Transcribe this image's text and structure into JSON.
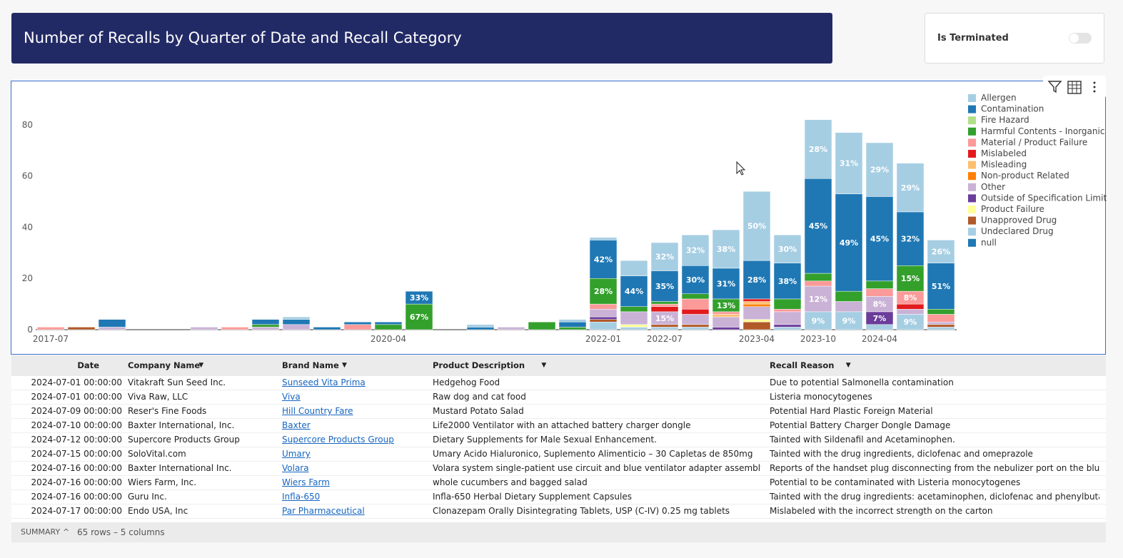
{
  "header": {
    "title": "Number of Recalls by Quarter of Date and Recall Category"
  },
  "filter": {
    "label": "Is Terminated"
  },
  "chart_data": {
    "type": "bar",
    "stacked": true,
    "categories": [
      "2017-07",
      null,
      null,
      null,
      null,
      null,
      null,
      null,
      null,
      null,
      null,
      "2020-04",
      null,
      null,
      null,
      null,
      null,
      null,
      "2022-01",
      null,
      "2022-07",
      null,
      null,
      "2023-04",
      null,
      "2023-10",
      null,
      "2024-04",
      null,
      null
    ],
    "ylim": [
      0,
      90
    ],
    "yticks": [
      0,
      20,
      40,
      60,
      80
    ],
    "grid": false,
    "legend": "right",
    "series": [
      {
        "name": "Allergen",
        "color": "#a6cee3",
        "values": [
          0,
          0,
          0,
          0,
          0,
          0,
          0,
          0,
          1,
          0,
          0,
          0,
          0,
          0,
          1,
          0,
          0,
          1,
          1,
          6,
          11,
          12,
          15,
          27,
          11,
          23,
          24,
          21,
          19,
          9
        ],
        "value_labels": [
          null,
          null,
          null,
          null,
          null,
          null,
          null,
          null,
          null,
          null,
          null,
          null,
          null,
          null,
          null,
          null,
          null,
          null,
          null,
          null,
          "32%",
          "32%",
          "38%",
          "50%",
          "30%",
          "28%",
          "31%",
          "29%",
          "29%",
          "26%"
        ]
      },
      {
        "name": "Contamination",
        "color": "#1f78b4",
        "values": [
          0,
          0,
          0,
          0,
          0,
          0,
          0,
          0,
          0,
          0,
          0,
          0,
          0,
          0,
          0,
          0,
          0,
          0,
          0,
          0,
          0,
          0,
          0,
          0,
          0,
          0,
          0,
          0,
          0,
          0
        ]
      },
      {
        "name": "Fire Hazard",
        "color": "#b2df8a",
        "values": [
          0,
          0,
          0,
          0,
          0,
          0,
          0,
          0,
          0,
          0,
          0,
          0,
          0,
          0,
          0,
          0,
          0,
          0,
          0,
          0,
          0,
          0,
          0,
          0,
          0,
          0,
          0,
          0,
          0,
          0
        ]
      },
      {
        "name": "Harmful Contents - Inorganic",
        "color": "#33a02c",
        "values": [
          0,
          0,
          0,
          0,
          0,
          0,
          0,
          1,
          0,
          0,
          0,
          2,
          10,
          0,
          0,
          0,
          3,
          1,
          10,
          2,
          1,
          2,
          5,
          0,
          4,
          3,
          4,
          3,
          10,
          2
        ],
        "value_labels": [
          null,
          null,
          null,
          null,
          null,
          null,
          null,
          null,
          null,
          null,
          null,
          null,
          "67%",
          null,
          null,
          null,
          null,
          null,
          "28%",
          null,
          null,
          null,
          "13%",
          null,
          null,
          null,
          null,
          null,
          "15%",
          null
        ]
      },
      {
        "name": "Material / Product Failure",
        "color": "#fb9a99",
        "values": [
          1,
          0,
          0,
          0,
          0,
          0,
          1,
          0,
          0,
          0,
          2,
          0,
          0,
          0,
          0,
          0,
          0,
          0,
          2,
          0,
          1,
          4,
          1,
          0,
          1,
          2,
          0,
          3,
          5,
          3
        ],
        "value_labels": [
          null,
          null,
          null,
          null,
          null,
          null,
          null,
          null,
          null,
          null,
          null,
          null,
          null,
          null,
          null,
          null,
          null,
          null,
          null,
          null,
          null,
          null,
          null,
          null,
          null,
          null,
          null,
          null,
          "8%",
          null
        ]
      },
      {
        "name": "Mislabeled",
        "color": "#e31a1c",
        "values": [
          0,
          0,
          0,
          0,
          0,
          0,
          0,
          0,
          0,
          0,
          0,
          0,
          0,
          0,
          0,
          0,
          0,
          0,
          0,
          0,
          2,
          2,
          0,
          1,
          0,
          0,
          0,
          0,
          2,
          0
        ]
      },
      {
        "name": "Misleading",
        "color": "#fdbf6f",
        "values": [
          0,
          0,
          0,
          0,
          0,
          0,
          0,
          0,
          0,
          0,
          0,
          0,
          0,
          0,
          0,
          0,
          0,
          0,
          0,
          0,
          0,
          0,
          1,
          1,
          0,
          0,
          0,
          0,
          0,
          0
        ]
      },
      {
        "name": "Non-product Related",
        "color": "#ff7f00",
        "values": [
          0,
          0,
          0,
          0,
          0,
          0,
          0,
          0,
          0,
          0,
          0,
          0,
          0,
          0,
          0,
          0,
          0,
          0,
          0,
          0,
          0,
          0,
          0,
          1,
          0,
          0,
          0,
          0,
          0,
          0
        ]
      },
      {
        "name": "Other",
        "color": "#cab2d6",
        "values": [
          0,
          0,
          1,
          0,
          0,
          1,
          0,
          1,
          2,
          0,
          0,
          0,
          0,
          0,
          0,
          1,
          0,
          0,
          3,
          5,
          5,
          4,
          4,
          5,
          5,
          10,
          4,
          6,
          2,
          1
        ],
        "value_labels": [
          null,
          null,
          null,
          null,
          null,
          null,
          null,
          null,
          null,
          null,
          null,
          null,
          null,
          null,
          null,
          null,
          null,
          null,
          null,
          null,
          "15%",
          null,
          null,
          null,
          null,
          "12%",
          null,
          "8%",
          null,
          null
        ]
      },
      {
        "name": "Outside of Specification Limit",
        "color": "#6a3d9a",
        "values": [
          0,
          0,
          0,
          0,
          0,
          0,
          0,
          0,
          0,
          0,
          0,
          0,
          0,
          0,
          0,
          0,
          0,
          0,
          1,
          0,
          0,
          0,
          1,
          0,
          1,
          0,
          0,
          5,
          0,
          0
        ],
        "value_labels": [
          null,
          null,
          null,
          null,
          null,
          null,
          null,
          null,
          null,
          null,
          null,
          null,
          null,
          null,
          null,
          null,
          null,
          null,
          null,
          null,
          null,
          null,
          null,
          null,
          null,
          null,
          null,
          "7%",
          null,
          null
        ]
      },
      {
        "name": "Product Failure",
        "color": "#ffff99",
        "values": [
          0,
          0,
          0,
          0,
          0,
          0,
          0,
          0,
          0,
          0,
          0,
          0,
          0,
          0,
          0,
          0,
          0,
          0,
          0,
          1,
          0,
          0,
          0,
          1,
          0,
          0,
          0,
          0,
          0,
          0
        ]
      },
      {
        "name": "Unapproved Drug",
        "color": "#b15928",
        "values": [
          0,
          1,
          0,
          0,
          0,
          0,
          0,
          0,
          0,
          0,
          0,
          0,
          0,
          0,
          0,
          0,
          0,
          0,
          1,
          0,
          1,
          1,
          0,
          3,
          0,
          0,
          0,
          0,
          0,
          1
        ]
      },
      {
        "name": "Undeclared Drug",
        "color": "#a6cee3",
        "values": [
          0,
          0,
          0,
          0,
          0,
          0,
          0,
          0,
          0,
          0,
          0,
          0,
          0,
          0,
          0,
          0,
          0,
          0,
          3,
          1,
          1,
          1,
          0,
          0,
          1,
          7,
          7,
          2,
          6,
          1
        ],
        "value_labels": [
          null,
          null,
          null,
          null,
          null,
          null,
          null,
          null,
          null,
          null,
          null,
          null,
          null,
          null,
          null,
          null,
          null,
          null,
          null,
          null,
          null,
          null,
          null,
          null,
          null,
          "9%",
          "9%",
          null,
          "9%",
          null
        ]
      },
      {
        "name": "null",
        "color": "#1f78b4",
        "values": [
          0,
          0,
          3,
          0,
          0,
          0,
          0,
          2,
          2,
          1,
          1,
          1,
          5,
          0,
          1,
          0,
          0,
          2,
          15,
          12,
          12,
          11,
          12,
          15,
          14,
          37,
          38,
          33,
          21,
          18
        ],
        "value_labels": [
          null,
          null,
          null,
          null,
          null,
          null,
          null,
          null,
          null,
          null,
          null,
          null,
          "33%",
          null,
          null,
          null,
          null,
          null,
          "42%",
          "44%",
          "35%",
          "30%",
          "31%",
          "28%",
          "38%",
          "45%",
          "49%",
          "45%",
          "32%",
          "51%"
        ]
      }
    ]
  },
  "table": {
    "columns": [
      "Date",
      "Company Name",
      "Brand Name",
      "Product Description",
      "Recall Reason"
    ],
    "rows": [
      [
        "2024-07-01 00:00:00",
        "Vitakraft Sun Seed Inc.",
        "Sunseed Vita Prima",
        "Hedgehog Food",
        "Due to potential Salmonella contamination"
      ],
      [
        "2024-07-01 00:00:00",
        "Viva Raw, LLC",
        "Viva",
        "Raw dog and cat food",
        "Listeria monocytogenes"
      ],
      [
        "2024-07-09 00:00:00",
        "Reser's Fine Foods",
        "Hill Country Fare",
        "Mustard Potato Salad",
        "Potential Hard Plastic Foreign Material"
      ],
      [
        "2024-07-10 00:00:00",
        "Baxter International, Inc.",
        "Baxter",
        "Life2000 Ventilator with an attached battery charger dongle",
        "Potential Battery Charger Dongle Damage"
      ],
      [
        "2024-07-12 00:00:00",
        "Supercore Products Group",
        "Supercore Products Group",
        "Dietary Supplements for Male Sexual Enhancement.",
        "Tainted with Sildenafil and Acetaminophen."
      ],
      [
        "2024-07-15 00:00:00",
        "SoloVital.com",
        "Umary",
        "Umary Acido Hialuronico, Suplemento Alimenticio – 30 Capletas de 850mg",
        "Tainted with the drug ingredients, diclofenac and omeprazole"
      ],
      [
        "2024-07-16 00:00:00",
        "Baxter International Inc.",
        "Volara",
        "Volara system single-patient use circuit and blue ventilator adapter assembly",
        "Reports of the handset plug disconnecting from the nebulizer port on the blue ventilat..."
      ],
      [
        "2024-07-16 00:00:00",
        "Wiers Farm, Inc.",
        "Wiers Farm",
        "whole cucumbers and bagged salad",
        "Potential to be contaminated with Listeria monocytogenes"
      ],
      [
        "2024-07-16 00:00:00",
        "Guru Inc.",
        "Infla-650",
        "Infla-650 Herbal Dietary Supplement Capsules",
        "Tainted with the drug ingredients:   acetaminophen, diclofenac and phenylbutazone"
      ],
      [
        "2024-07-17 00:00:00",
        "Endo USA, Inc",
        "Par Pharmaceutical",
        "Clonazepam Orally Disintegrating Tablets, USP (C-IV) 0.25 mg tablets",
        "Mislabeled with the incorrect strength on the carton"
      ]
    ]
  },
  "footer": {
    "summary": "SUMMARY",
    "count": "65 rows – 5 columns"
  }
}
